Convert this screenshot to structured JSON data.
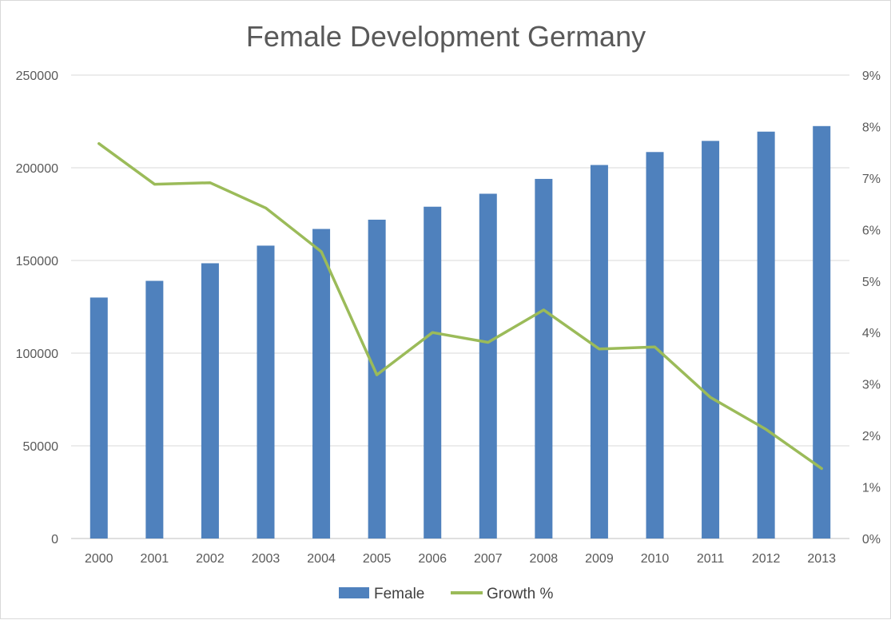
{
  "chart_data": {
    "type": "bar",
    "title": "Female Development Germany",
    "categories": [
      "2000",
      "2001",
      "2002",
      "2003",
      "2004",
      "2005",
      "2006",
      "2007",
      "2008",
      "2009",
      "2010",
      "2011",
      "2012",
      "2013"
    ],
    "series": [
      {
        "name": "Female",
        "type": "bar",
        "axis": "left",
        "color": "#4f81bd",
        "values": [
          130000,
          139000,
          148500,
          158000,
          167000,
          172000,
          179000,
          186000,
          194000,
          201500,
          208500,
          214500,
          219500,
          222500
        ]
      },
      {
        "name": "Growth %",
        "type": "line",
        "axis": "right",
        "color": "#9bbb59",
        "values": [
          7.67,
          6.88,
          6.91,
          6.42,
          5.57,
          3.18,
          4.0,
          3.81,
          4.44,
          3.68,
          3.72,
          2.74,
          2.12,
          1.36
        ]
      }
    ],
    "y_left": {
      "lim": [
        0,
        250000
      ],
      "ticks": [
        0,
        50000,
        100000,
        150000,
        200000,
        250000
      ],
      "tick_labels": [
        "0",
        "50000",
        "100000",
        "150000",
        "200000",
        "250000"
      ]
    },
    "y_right": {
      "lim": [
        0,
        9
      ],
      "ticks": [
        0,
        1,
        2,
        3,
        4,
        5,
        6,
        7,
        8,
        9
      ],
      "tick_labels": [
        "0%",
        "1%",
        "2%",
        "3%",
        "4%",
        "5%",
        "6%",
        "7%",
        "8%",
        "9%"
      ]
    },
    "grid": true,
    "legend_position": "bottom"
  }
}
